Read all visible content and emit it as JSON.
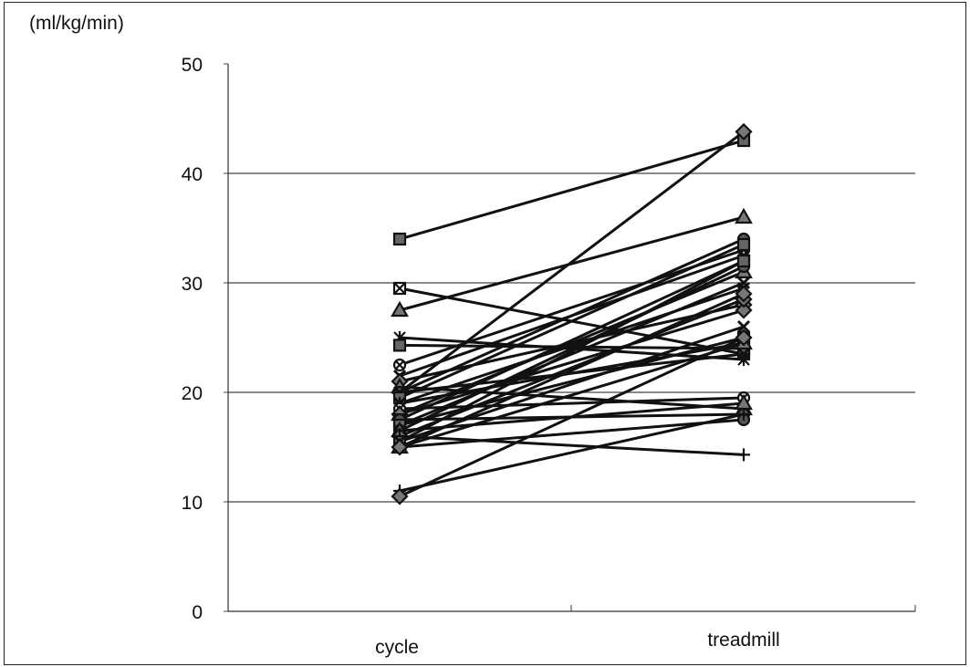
{
  "chart_data": {
    "type": "line",
    "title": "",
    "ylabel": "(ml/kg/min)",
    "xlabel": "",
    "categories": [
      "cycle",
      "treadmill"
    ],
    "ylim": [
      0,
      50
    ],
    "yticks": [
      0,
      10,
      20,
      30,
      40,
      50
    ],
    "grid": "horizontal",
    "line_color": "#111111",
    "pairs": [
      [
        34.0,
        43.0
      ],
      [
        20.0,
        43.8
      ],
      [
        29.5,
        23.5
      ],
      [
        27.5,
        36.0
      ],
      [
        25.0,
        23.0
      ],
      [
        24.3,
        24.0
      ],
      [
        22.5,
        33.0
      ],
      [
        21.5,
        32.5
      ],
      [
        21.0,
        28.0
      ],
      [
        20.5,
        18.5
      ],
      [
        20.0,
        34.0
      ],
      [
        20.0,
        23.5
      ],
      [
        19.5,
        33.5
      ],
      [
        19.0,
        29.5
      ],
      [
        19.0,
        24.5
      ],
      [
        18.5,
        19.5
      ],
      [
        18.0,
        31.0
      ],
      [
        18.0,
        27.5
      ],
      [
        17.5,
        32.0
      ],
      [
        17.5,
        18.0
      ],
      [
        17.0,
        30.0
      ],
      [
        17.0,
        25.0
      ],
      [
        16.5,
        31.5
      ],
      [
        16.5,
        19.0
      ],
      [
        16.0,
        28.5
      ],
      [
        16.0,
        14.3
      ],
      [
        15.5,
        32.0
      ],
      [
        15.5,
        26.0
      ],
      [
        15.0,
        24.5
      ],
      [
        15.0,
        17.5
      ],
      [
        15.0,
        29.0
      ],
      [
        11.0,
        18.0
      ],
      [
        10.5,
        25.0
      ]
    ],
    "markers": [
      "square",
      "diamond",
      "square-x",
      "triangle",
      "star",
      "square",
      "circle-x",
      "x",
      "diamond",
      "triangle",
      "circle",
      "x",
      "square",
      "x",
      "plus",
      "circle-x",
      "triangle",
      "diamond",
      "square",
      "circle",
      "x",
      "square",
      "circle",
      "triangle",
      "diamond",
      "plus",
      "square",
      "x",
      "triangle",
      "circle",
      "diamond",
      "plus",
      "diamond"
    ]
  }
}
